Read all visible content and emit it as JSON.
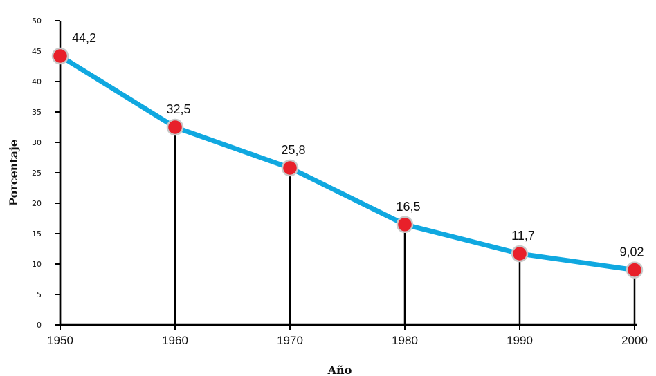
{
  "chart_data": {
    "type": "line",
    "title": "",
    "xlabel": "Año",
    "ylabel": "Porcentaje",
    "x": [
      1950,
      1960,
      1970,
      1980,
      1990,
      2000
    ],
    "x_ticks": [
      "1950",
      "1960",
      "1970",
      "1980",
      "1990",
      "2000"
    ],
    "y_ticks": [
      "0",
      "5",
      "10",
      "15",
      "20",
      "25",
      "30",
      "35",
      "40",
      "45",
      "50"
    ],
    "ylim": [
      0,
      50
    ],
    "series": [
      {
        "values": [
          44.2,
          32.5,
          25.8,
          16.5,
          11.7,
          9.02
        ],
        "labels": [
          "44,2",
          "32,5",
          "25,8",
          "16,5",
          "11,7",
          "9,02"
        ],
        "line_color": "#10a8e0",
        "marker_color": "#e8202a"
      }
    ],
    "drop_lines": true,
    "grid": false,
    "legend": "none"
  }
}
